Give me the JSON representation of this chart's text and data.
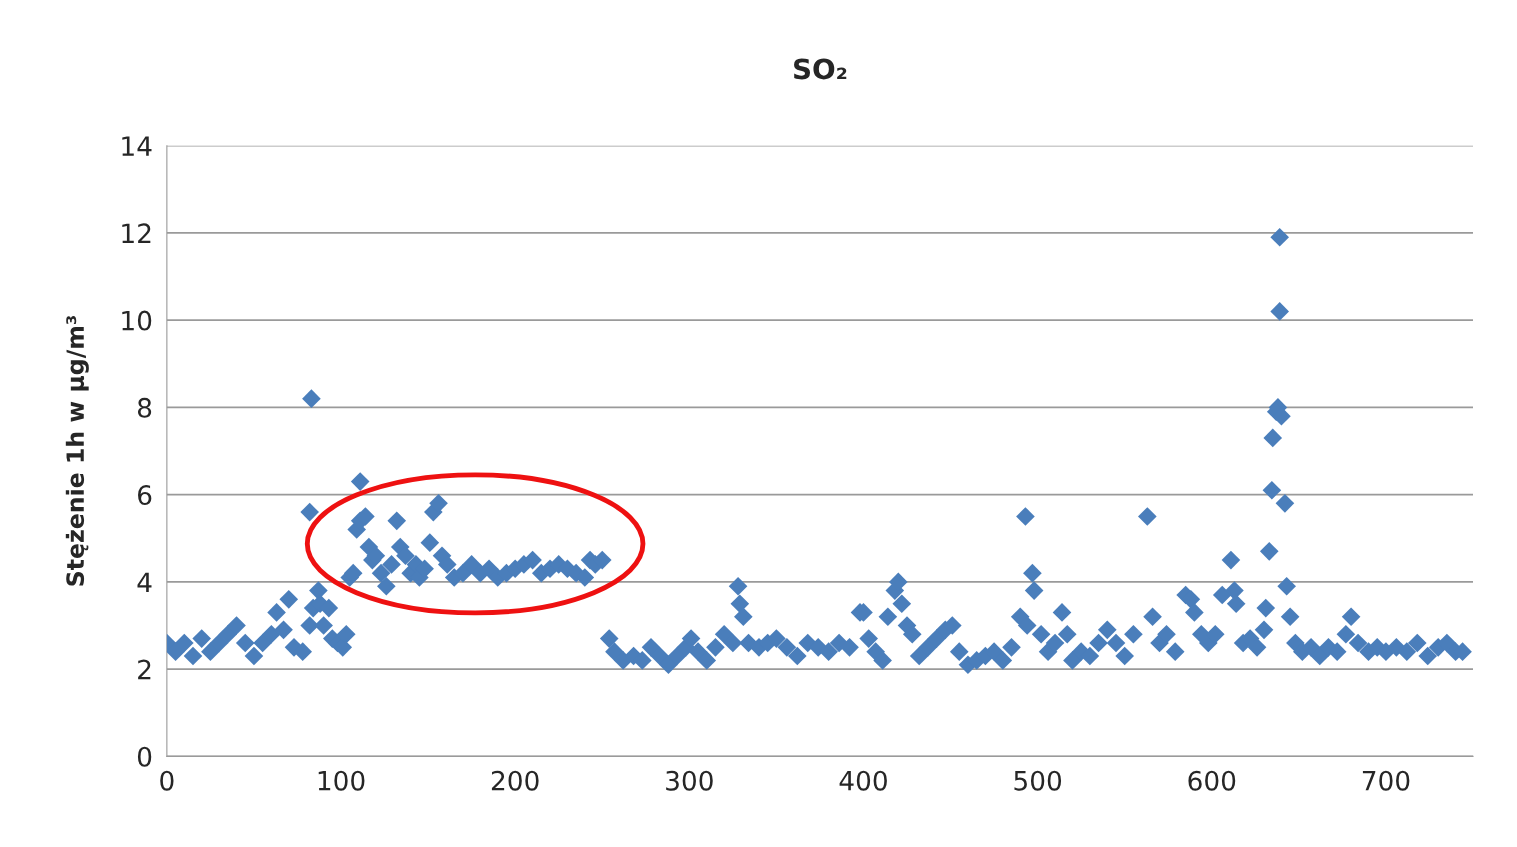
{
  "chart_data": {
    "type": "scatter",
    "title": "SO₂",
    "ylabel": "Stężenie 1h w µg/m³",
    "xlim": [
      0,
      750
    ],
    "xticks": [
      0,
      100,
      200,
      300,
      400,
      500,
      600,
      700
    ],
    "ylim": [
      0,
      14
    ],
    "yticks": [
      0,
      2,
      4,
      6,
      8,
      10,
      12,
      14
    ],
    "grid": "y",
    "marker": "diamond",
    "legend": false,
    "series": [
      {
        "color": "#4a7ebb",
        "x": [
          0,
          5,
          10,
          15,
          20,
          25,
          30,
          35,
          40,
          45,
          50,
          55,
          60,
          63,
          67,
          70,
          73,
          78,
          82,
          83,
          82,
          84,
          87,
          88,
          90,
          93,
          95,
          98,
          101,
          103,
          105,
          107,
          109,
          111,
          111,
          114,
          116,
          118,
          120,
          123,
          126,
          129,
          132,
          134,
          137,
          140,
          143,
          145,
          148,
          151,
          153,
          156,
          158,
          161,
          165,
          170,
          175,
          180,
          185,
          190,
          195,
          200,
          205,
          210,
          215,
          220,
          225,
          230,
          235,
          240,
          243,
          246,
          250,
          254,
          257,
          262,
          268,
          273,
          278,
          283,
          288,
          293,
          298,
          301,
          305,
          310,
          315,
          320,
          325,
          328,
          329,
          331,
          334,
          340,
          345,
          350,
          356,
          362,
          368,
          374,
          380,
          386,
          392,
          398,
          400,
          403,
          407,
          411,
          414,
          418,
          420,
          422,
          425,
          428,
          432,
          437,
          442,
          447,
          451,
          455,
          460,
          465,
          470,
          475,
          480,
          485,
          490,
          494,
          493,
          497,
          498,
          502,
          506,
          510,
          514,
          517,
          520,
          525,
          530,
          535,
          540,
          545,
          550,
          555,
          563,
          566,
          570,
          574,
          579,
          585,
          588,
          590,
          594,
          598,
          602,
          606,
          611,
          613,
          614,
          618,
          622,
          626,
          630,
          631,
          633,
          634.5,
          635,
          638,
          637,
          639,
          639,
          640,
          642,
          643,
          645,
          648,
          652,
          657,
          662,
          667,
          672,
          677,
          680,
          684,
          690,
          695,
          700,
          706,
          712,
          718,
          724,
          730,
          735,
          740,
          744
        ],
        "values": [
          2.6,
          2.4,
          2.6,
          2.3,
          2.7,
          2.4,
          2.6,
          2.8,
          3.0,
          2.6,
          2.3,
          2.6,
          2.8,
          3.3,
          2.9,
          3.6,
          2.5,
          2.4,
          3.0,
          8.2,
          5.6,
          3.4,
          3.8,
          3.5,
          3.0,
          3.4,
          2.7,
          2.6,
          2.5,
          2.8,
          4.1,
          4.2,
          5.2,
          5.4,
          6.3,
          5.5,
          4.8,
          4.5,
          4.6,
          4.2,
          3.9,
          4.4,
          5.4,
          4.8,
          4.6,
          4.2,
          4.4,
          4.1,
          4.3,
          4.9,
          5.6,
          5.8,
          4.6,
          4.4,
          4.1,
          4.2,
          4.4,
          4.2,
          4.3,
          4.1,
          4.2,
          4.3,
          4.4,
          4.5,
          4.2,
          4.3,
          4.4,
          4.3,
          4.2,
          4.1,
          4.5,
          4.4,
          4.5,
          2.7,
          2.4,
          2.2,
          2.3,
          2.2,
          2.5,
          2.3,
          2.1,
          2.3,
          2.5,
          2.7,
          2.4,
          2.2,
          2.5,
          2.8,
          2.6,
          3.9,
          3.5,
          3.2,
          2.6,
          2.5,
          2.6,
          2.7,
          2.5,
          2.3,
          2.6,
          2.5,
          2.4,
          2.6,
          2.5,
          3.3,
          3.3,
          2.7,
          2.4,
          2.2,
          3.2,
          3.8,
          4.0,
          3.5,
          3.0,
          2.8,
          2.3,
          2.5,
          2.7,
          2.9,
          3.0,
          2.4,
          2.1,
          2.2,
          2.3,
          2.4,
          2.2,
          2.5,
          3.2,
          3.0,
          5.5,
          4.2,
          3.8,
          2.8,
          2.4,
          2.6,
          3.3,
          2.8,
          2.2,
          2.4,
          2.3,
          2.6,
          2.9,
          2.6,
          2.3,
          2.8,
          5.5,
          3.2,
          2.6,
          2.8,
          2.4,
          3.7,
          3.6,
          3.3,
          2.8,
          2.6,
          2.8,
          3.7,
          4.5,
          3.8,
          3.5,
          2.6,
          2.7,
          2.5,
          2.9,
          3.4,
          4.7,
          6.1,
          7.3,
          8.0,
          7.9,
          11.9,
          10.2,
          7.8,
          5.8,
          3.9,
          3.2,
          2.6,
          2.4,
          2.5,
          2.3,
          2.5,
          2.4,
          2.8,
          3.2,
          2.6,
          2.4,
          2.5,
          2.4,
          2.5,
          2.4,
          2.6,
          2.3,
          2.5,
          2.6,
          2.4,
          2.4
        ]
      }
    ]
  }
}
